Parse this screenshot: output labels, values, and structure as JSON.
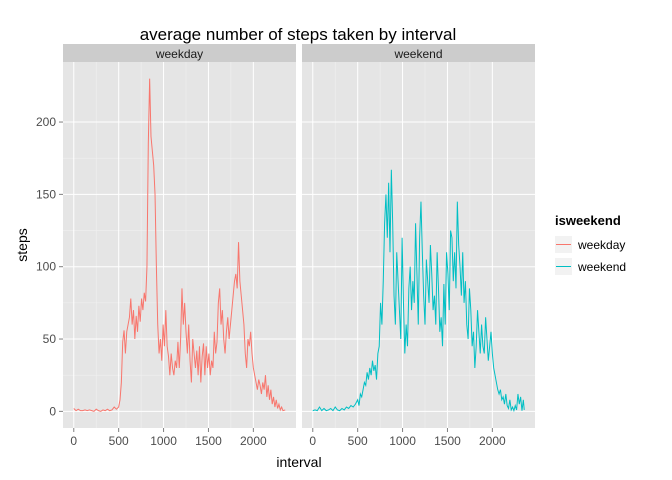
{
  "chart_data": {
    "type": "line",
    "title": "average number of steps taken by interval",
    "xlabel": "interval",
    "ylabel": "steps",
    "xlim": [
      -120,
      2475
    ],
    "ylim": [
      -11.5,
      241.5
    ],
    "x_ticks": [
      0,
      500,
      1000,
      1500,
      2000
    ],
    "y_ticks": [
      0,
      50,
      100,
      150,
      200
    ],
    "grid": true,
    "facet_variable": "isweekend",
    "legend": {
      "title": "isweekend",
      "position": "right",
      "entries": [
        {
          "label": "weekday",
          "color": "#F8766D"
        },
        {
          "label": "weekend",
          "color": "#00BFC4"
        }
      ]
    },
    "panels": [
      {
        "strip": "weekday",
        "series": "weekday",
        "color": "#F8766D",
        "points": [
          [
            0,
            2
          ],
          [
            25,
            0.5
          ],
          [
            50,
            1.5
          ],
          [
            75,
            0.5
          ],
          [
            100,
            0.5
          ],
          [
            125,
            1
          ],
          [
            150,
            0.5
          ],
          [
            175,
            1
          ],
          [
            200,
            0.5
          ],
          [
            225,
            0
          ],
          [
            250,
            1.5
          ],
          [
            275,
            0.5
          ],
          [
            300,
            0
          ],
          [
            325,
            1
          ],
          [
            350,
            0.5
          ],
          [
            375,
            1.5
          ],
          [
            400,
            0.5
          ],
          [
            425,
            1
          ],
          [
            450,
            3
          ],
          [
            475,
            1.5
          ],
          [
            500,
            3
          ],
          [
            515,
            8
          ],
          [
            530,
            20
          ],
          [
            545,
            48
          ],
          [
            560,
            56
          ],
          [
            575,
            40
          ],
          [
            590,
            55
          ],
          [
            605,
            60
          ],
          [
            620,
            65
          ],
          [
            635,
            78
          ],
          [
            650,
            60
          ],
          [
            665,
            70
          ],
          [
            680,
            50
          ],
          [
            695,
            66
          ],
          [
            710,
            55
          ],
          [
            725,
            73
          ],
          [
            740,
            62
          ],
          [
            755,
            78
          ],
          [
            770,
            70
          ],
          [
            785,
            82
          ],
          [
            800,
            76
          ],
          [
            815,
            100
          ],
          [
            830,
            185
          ],
          [
            845,
            230
          ],
          [
            860,
            190
          ],
          [
            875,
            180
          ],
          [
            890,
            170
          ],
          [
            905,
            150
          ],
          [
            920,
            100
          ],
          [
            935,
            60
          ],
          [
            950,
            40
          ],
          [
            965,
            50
          ],
          [
            980,
            35
          ],
          [
            995,
            60
          ],
          [
            1010,
            45
          ],
          [
            1025,
            70
          ],
          [
            1040,
            45
          ],
          [
            1055,
            38
          ],
          [
            1070,
            25
          ],
          [
            1085,
            40
          ],
          [
            1100,
            30
          ],
          [
            1115,
            25
          ],
          [
            1130,
            35
          ],
          [
            1145,
            30
          ],
          [
            1160,
            48
          ],
          [
            1175,
            30
          ],
          [
            1190,
            50
          ],
          [
            1205,
            85
          ],
          [
            1220,
            60
          ],
          [
            1235,
            75
          ],
          [
            1250,
            55
          ],
          [
            1265,
            40
          ],
          [
            1280,
            60
          ],
          [
            1295,
            35
          ],
          [
            1310,
            20
          ],
          [
            1325,
            50
          ],
          [
            1340,
            40
          ],
          [
            1355,
            30
          ],
          [
            1370,
            42
          ],
          [
            1385,
            25
          ],
          [
            1400,
            45
          ],
          [
            1415,
            20
          ],
          [
            1430,
            38
          ],
          [
            1445,
            47
          ],
          [
            1460,
            25
          ],
          [
            1475,
            45
          ],
          [
            1490,
            30
          ],
          [
            1505,
            40
          ],
          [
            1520,
            25
          ],
          [
            1535,
            35
          ],
          [
            1550,
            30
          ],
          [
            1565,
            55
          ],
          [
            1580,
            40
          ],
          [
            1595,
            48
          ],
          [
            1610,
            75
          ],
          [
            1625,
            85
          ],
          [
            1640,
            60
          ],
          [
            1655,
            70
          ],
          [
            1670,
            50
          ],
          [
            1685,
            40
          ],
          [
            1700,
            55
          ],
          [
            1715,
            65
          ],
          [
            1730,
            50
          ],
          [
            1745,
            60
          ],
          [
            1760,
            70
          ],
          [
            1775,
            80
          ],
          [
            1790,
            90
          ],
          [
            1805,
            95
          ],
          [
            1820,
            85
          ],
          [
            1835,
            117
          ],
          [
            1850,
            90
          ],
          [
            1865,
            80
          ],
          [
            1880,
            70
          ],
          [
            1895,
            60
          ],
          [
            1910,
            40
          ],
          [
            1925,
            30
          ],
          [
            1940,
            50
          ],
          [
            1955,
            45
          ],
          [
            1970,
            55
          ],
          [
            1985,
            40
          ],
          [
            2000,
            30
          ],
          [
            2015,
            25
          ],
          [
            2030,
            20
          ],
          [
            2045,
            15
          ],
          [
            2060,
            22
          ],
          [
            2075,
            18
          ],
          [
            2090,
            12
          ],
          [
            2105,
            20
          ],
          [
            2120,
            15
          ],
          [
            2135,
            25
          ],
          [
            2150,
            10
          ],
          [
            2165,
            18
          ],
          [
            2180,
            8
          ],
          [
            2195,
            15
          ],
          [
            2210,
            5
          ],
          [
            2225,
            10
          ],
          [
            2240,
            3
          ],
          [
            2255,
            8
          ],
          [
            2270,
            2
          ],
          [
            2285,
            5
          ],
          [
            2300,
            1
          ],
          [
            2315,
            3
          ],
          [
            2330,
            0.5
          ],
          [
            2355,
            1
          ]
        ]
      },
      {
        "strip": "weekend",
        "series": "weekend",
        "color": "#00BFC4",
        "points": [
          [
            0,
            0.5
          ],
          [
            25,
            1
          ],
          [
            50,
            0.5
          ],
          [
            75,
            3
          ],
          [
            100,
            0.5
          ],
          [
            125,
            2
          ],
          [
            150,
            0.5
          ],
          [
            175,
            1
          ],
          [
            200,
            2
          ],
          [
            225,
            0.5
          ],
          [
            250,
            3
          ],
          [
            275,
            1
          ],
          [
            300,
            0.5
          ],
          [
            325,
            2
          ],
          [
            350,
            1
          ],
          [
            375,
            3
          ],
          [
            400,
            2
          ],
          [
            425,
            4
          ],
          [
            450,
            3
          ],
          [
            475,
            5
          ],
          [
            500,
            8
          ],
          [
            515,
            4
          ],
          [
            530,
            12
          ],
          [
            545,
            10
          ],
          [
            560,
            15
          ],
          [
            575,
            20
          ],
          [
            590,
            18
          ],
          [
            605,
            27
          ],
          [
            620,
            22
          ],
          [
            635,
            30
          ],
          [
            650,
            25
          ],
          [
            665,
            35
          ],
          [
            680,
            28
          ],
          [
            695,
            32
          ],
          [
            710,
            22
          ],
          [
            725,
            40
          ],
          [
            740,
            45
          ],
          [
            755,
            75
          ],
          [
            770,
            60
          ],
          [
            785,
            90
          ],
          [
            800,
            130
          ],
          [
            815,
            150
          ],
          [
            830,
            120
          ],
          [
            845,
            158
          ],
          [
            860,
            110
          ],
          [
            875,
            167
          ],
          [
            890,
            130
          ],
          [
            905,
            80
          ],
          [
            920,
            60
          ],
          [
            935,
            110
          ],
          [
            950,
            90
          ],
          [
            965,
            70
          ],
          [
            980,
            50
          ],
          [
            995,
            120
          ],
          [
            1010,
            75
          ],
          [
            1025,
            40
          ],
          [
            1040,
            60
          ],
          [
            1055,
            45
          ],
          [
            1070,
            85
          ],
          [
            1085,
            100
          ],
          [
            1100,
            70
          ],
          [
            1115,
            90
          ],
          [
            1130,
            75
          ],
          [
            1145,
            130
          ],
          [
            1160,
            95
          ],
          [
            1175,
            60
          ],
          [
            1190,
            120
          ],
          [
            1205,
            145
          ],
          [
            1220,
            110
          ],
          [
            1235,
            80
          ],
          [
            1250,
            60
          ],
          [
            1265,
            105
          ],
          [
            1280,
            90
          ],
          [
            1295,
            75
          ],
          [
            1310,
            115
          ],
          [
            1325,
            95
          ],
          [
            1340,
            70
          ],
          [
            1355,
            80
          ],
          [
            1370,
            60
          ],
          [
            1385,
            110
          ],
          [
            1400,
            85
          ],
          [
            1415,
            55
          ],
          [
            1430,
            65
          ],
          [
            1445,
            45
          ],
          [
            1460,
            88
          ],
          [
            1475,
            60
          ],
          [
            1490,
            110
          ],
          [
            1505,
            95
          ],
          [
            1520,
            70
          ],
          [
            1535,
            125
          ],
          [
            1550,
            120
          ],
          [
            1565,
            90
          ],
          [
            1580,
            110
          ],
          [
            1595,
            85
          ],
          [
            1610,
            145
          ],
          [
            1625,
            115
          ],
          [
            1640,
            100
          ],
          [
            1655,
            80
          ],
          [
            1670,
            110
          ],
          [
            1685,
            75
          ],
          [
            1700,
            90
          ],
          [
            1715,
            60
          ],
          [
            1730,
            50
          ],
          [
            1745,
            85
          ],
          [
            1760,
            70
          ],
          [
            1775,
            45
          ],
          [
            1790,
            55
          ],
          [
            1805,
            30
          ],
          [
            1820,
            45
          ],
          [
            1835,
            70
          ],
          [
            1850,
            55
          ],
          [
            1865,
            40
          ],
          [
            1880,
            60
          ],
          [
            1895,
            45
          ],
          [
            1910,
            40
          ],
          [
            1925,
            65
          ],
          [
            1940,
            50
          ],
          [
            1955,
            35
          ],
          [
            1970,
            45
          ],
          [
            1985,
            55
          ],
          [
            2000,
            40
          ],
          [
            2015,
            30
          ],
          [
            2030,
            25
          ],
          [
            2045,
            20
          ],
          [
            2060,
            15
          ],
          [
            2075,
            12
          ],
          [
            2090,
            15
          ],
          [
            2105,
            8
          ],
          [
            2120,
            10
          ],
          [
            2135,
            5
          ],
          [
            2150,
            12
          ],
          [
            2165,
            4
          ],
          [
            2180,
            2
          ],
          [
            2195,
            8
          ],
          [
            2210,
            1
          ],
          [
            2225,
            3
          ],
          [
            2240,
            0.5
          ],
          [
            2255,
            4
          ],
          [
            2270,
            1
          ],
          [
            2285,
            12
          ],
          [
            2300,
            5
          ],
          [
            2315,
            10
          ],
          [
            2330,
            0.5
          ],
          [
            2345,
            8
          ],
          [
            2355,
            1
          ]
        ]
      }
    ]
  }
}
